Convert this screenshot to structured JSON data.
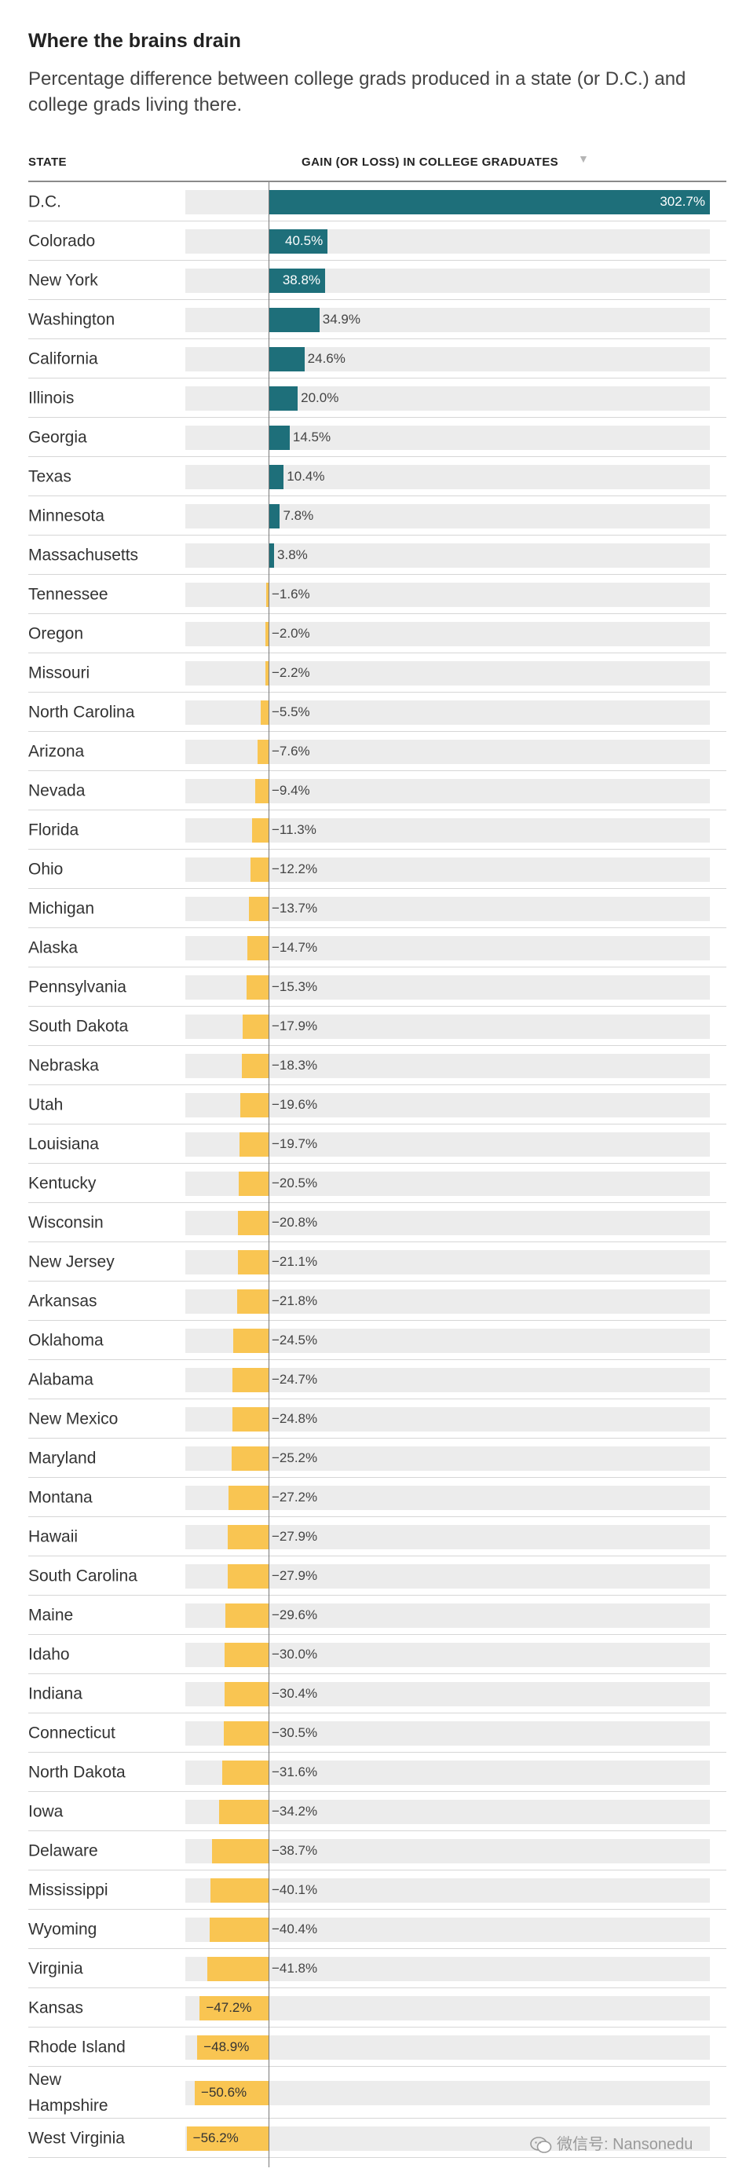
{
  "title": "Where the brains drain",
  "subtitle": "Percentage difference between college grads produced in a state (or D.C.) and college grads living there.",
  "columns": {
    "state": "STATE",
    "gain": "GAIN (OR LOSS) IN COLLEGE GRADUATES"
  },
  "sort_icon": "▼",
  "watermark": "微信号: Nansonedu",
  "colors": {
    "gain": "#1e6f7a",
    "loss": "#f9c552",
    "track": "#ececec"
  },
  "chart_data": {
    "type": "bar",
    "orientation": "horizontal",
    "title": "Where the brains drain",
    "xlabel": "GAIN (OR LOSS) IN COLLEGE GRADUATES",
    "ylabel": "STATE",
    "xlim": [
      -60,
      302.7
    ],
    "grid": false,
    "categories": [
      "D.C.",
      "Colorado",
      "New York",
      "Washington",
      "California",
      "Illinois",
      "Georgia",
      "Texas",
      "Minnesota",
      "Massachusetts",
      "Tennessee",
      "Oregon",
      "Missouri",
      "North Carolina",
      "Arizona",
      "Nevada",
      "Florida",
      "Ohio",
      "Michigan",
      "Alaska",
      "Pennsylvania",
      "South Dakota",
      "Nebraska",
      "Utah",
      "Louisiana",
      "Kentucky",
      "Wisconsin",
      "New Jersey",
      "Arkansas",
      "Oklahoma",
      "Alabama",
      "New Mexico",
      "Maryland",
      "Montana",
      "Hawaii",
      "South Carolina",
      "Maine",
      "Idaho",
      "Indiana",
      "Connecticut",
      "North Dakota",
      "Iowa",
      "Delaware",
      "Mississippi",
      "Wyoming",
      "Virginia",
      "Kansas",
      "Rhode Island",
      "New Hampshire",
      "West Virginia"
    ],
    "values": [
      302.7,
      40.5,
      38.8,
      34.9,
      24.6,
      20.0,
      14.5,
      10.4,
      7.8,
      3.8,
      -1.6,
      -2.0,
      -2.2,
      -5.5,
      -7.6,
      -9.4,
      -11.3,
      -12.2,
      -13.7,
      -14.7,
      -15.3,
      -17.9,
      -18.3,
      -19.6,
      -19.7,
      -20.5,
      -20.8,
      -21.1,
      -21.8,
      -24.5,
      -24.7,
      -24.8,
      -25.2,
      -27.2,
      -27.9,
      -27.9,
      -29.6,
      -30.0,
      -30.4,
      -30.5,
      -31.6,
      -34.2,
      -38.7,
      -40.1,
      -40.4,
      -41.8,
      -47.2,
      -48.9,
      -50.6,
      -56.2
    ],
    "value_labels": [
      "302.7%",
      "40.5%",
      "38.8%",
      "34.9%",
      "24.6%",
      "20.0%",
      "14.5%",
      "10.4%",
      "7.8%",
      "3.8%",
      "−1.6%",
      "−2.0%",
      "−2.2%",
      "−5.5%",
      "−7.6%",
      "−9.4%",
      "−11.3%",
      "−12.2%",
      "−13.7%",
      "−14.7%",
      "−15.3%",
      "−17.9%",
      "−18.3%",
      "−19.6%",
      "−19.7%",
      "−20.5%",
      "−20.8%",
      "−21.1%",
      "−21.8%",
      "−24.5%",
      "−24.7%",
      "−24.8%",
      "−25.2%",
      "−27.2%",
      "−27.9%",
      "−27.9%",
      "−29.6%",
      "−30.0%",
      "−30.4%",
      "−30.5%",
      "−31.6%",
      "−34.2%",
      "−38.7%",
      "−40.1%",
      "−40.4%",
      "−41.8%",
      "−47.2%",
      "−48.9%",
      "−50.6%",
      "−56.2%"
    ],
    "labels_inside_bar": [
      "D.C.",
      "Colorado",
      "New York",
      "Kansas",
      "Rhode Island",
      "New Hampshire",
      "West Virginia"
    ]
  }
}
